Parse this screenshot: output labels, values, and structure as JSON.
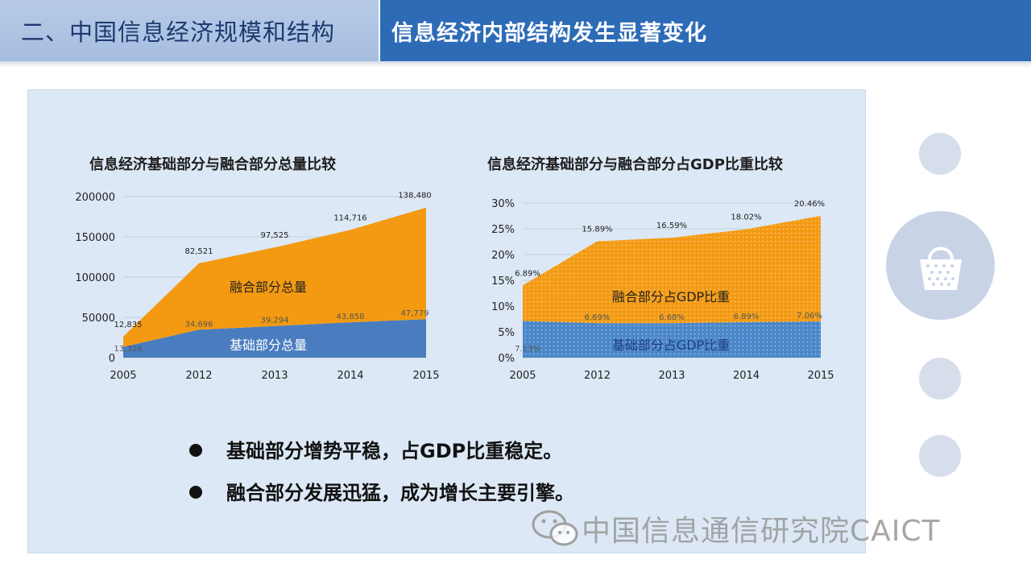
{
  "header": {
    "section_title": "二、中国信息经济规模和结构",
    "slide_title": "信息经济内部结构发生显著变化"
  },
  "bullets": [
    "基础部分增势平稳，占GDP比重稳定。",
    "融合部分发展迅猛，成为增长主要引擎。"
  ],
  "watermark": "中国信息通信研究院CAICT",
  "colors": {
    "header_right": "#2d6bb6",
    "header_left": "#a6bde0",
    "fusion": "#f39a12",
    "basic": "#4a7dc0",
    "panel": "#dce8f5"
  },
  "chart_data": [
    {
      "type": "area",
      "title": "信息经济基础部分与融合部分总量比较",
      "categories": [
        "2005",
        "2012",
        "2013",
        "2014",
        "2015"
      ],
      "ylim": [
        0,
        200000
      ],
      "yticks": [
        "0",
        "50000",
        "100000",
        "150000",
        "200000"
      ],
      "stacked": true,
      "series": [
        {
          "name": "基础部分总量",
          "values": [
            13326,
            34696,
            39294,
            43858,
            47779
          ],
          "labels": [
            "13,326",
            "34,696",
            "39,294",
            "43,858",
            "47,779"
          ]
        },
        {
          "name": "融合部分总量",
          "values": [
            12835,
            82521,
            97525,
            114716,
            138480
          ],
          "labels": [
            "12,835",
            "82,521",
            "97,525",
            "114,716",
            "138,480"
          ]
        }
      ]
    },
    {
      "type": "area",
      "title": "信息经济基础部分与融合部分占GDP比重比较",
      "categories": [
        "2005",
        "2012",
        "2013",
        "2014",
        "2015"
      ],
      "ylim": [
        0,
        30
      ],
      "yticks": [
        "0%",
        "5%",
        "10%",
        "15%",
        "20%",
        "25%",
        "30%"
      ],
      "stacked": true,
      "series": [
        {
          "name": "基础部分占GDP比重",
          "values": [
            7.13,
            6.69,
            6.68,
            6.89,
            7.06
          ],
          "labels": [
            "7.13%",
            "6.69%",
            "6.68%",
            "6.89%",
            "7.06%"
          ]
        },
        {
          "name": "融合部分占GDP比重",
          "values": [
            6.89,
            15.89,
            16.59,
            18.02,
            20.46
          ],
          "labels": [
            "6.89%",
            "15.89%",
            "16.59%",
            "18.02%",
            "20.46%"
          ]
        }
      ]
    }
  ]
}
